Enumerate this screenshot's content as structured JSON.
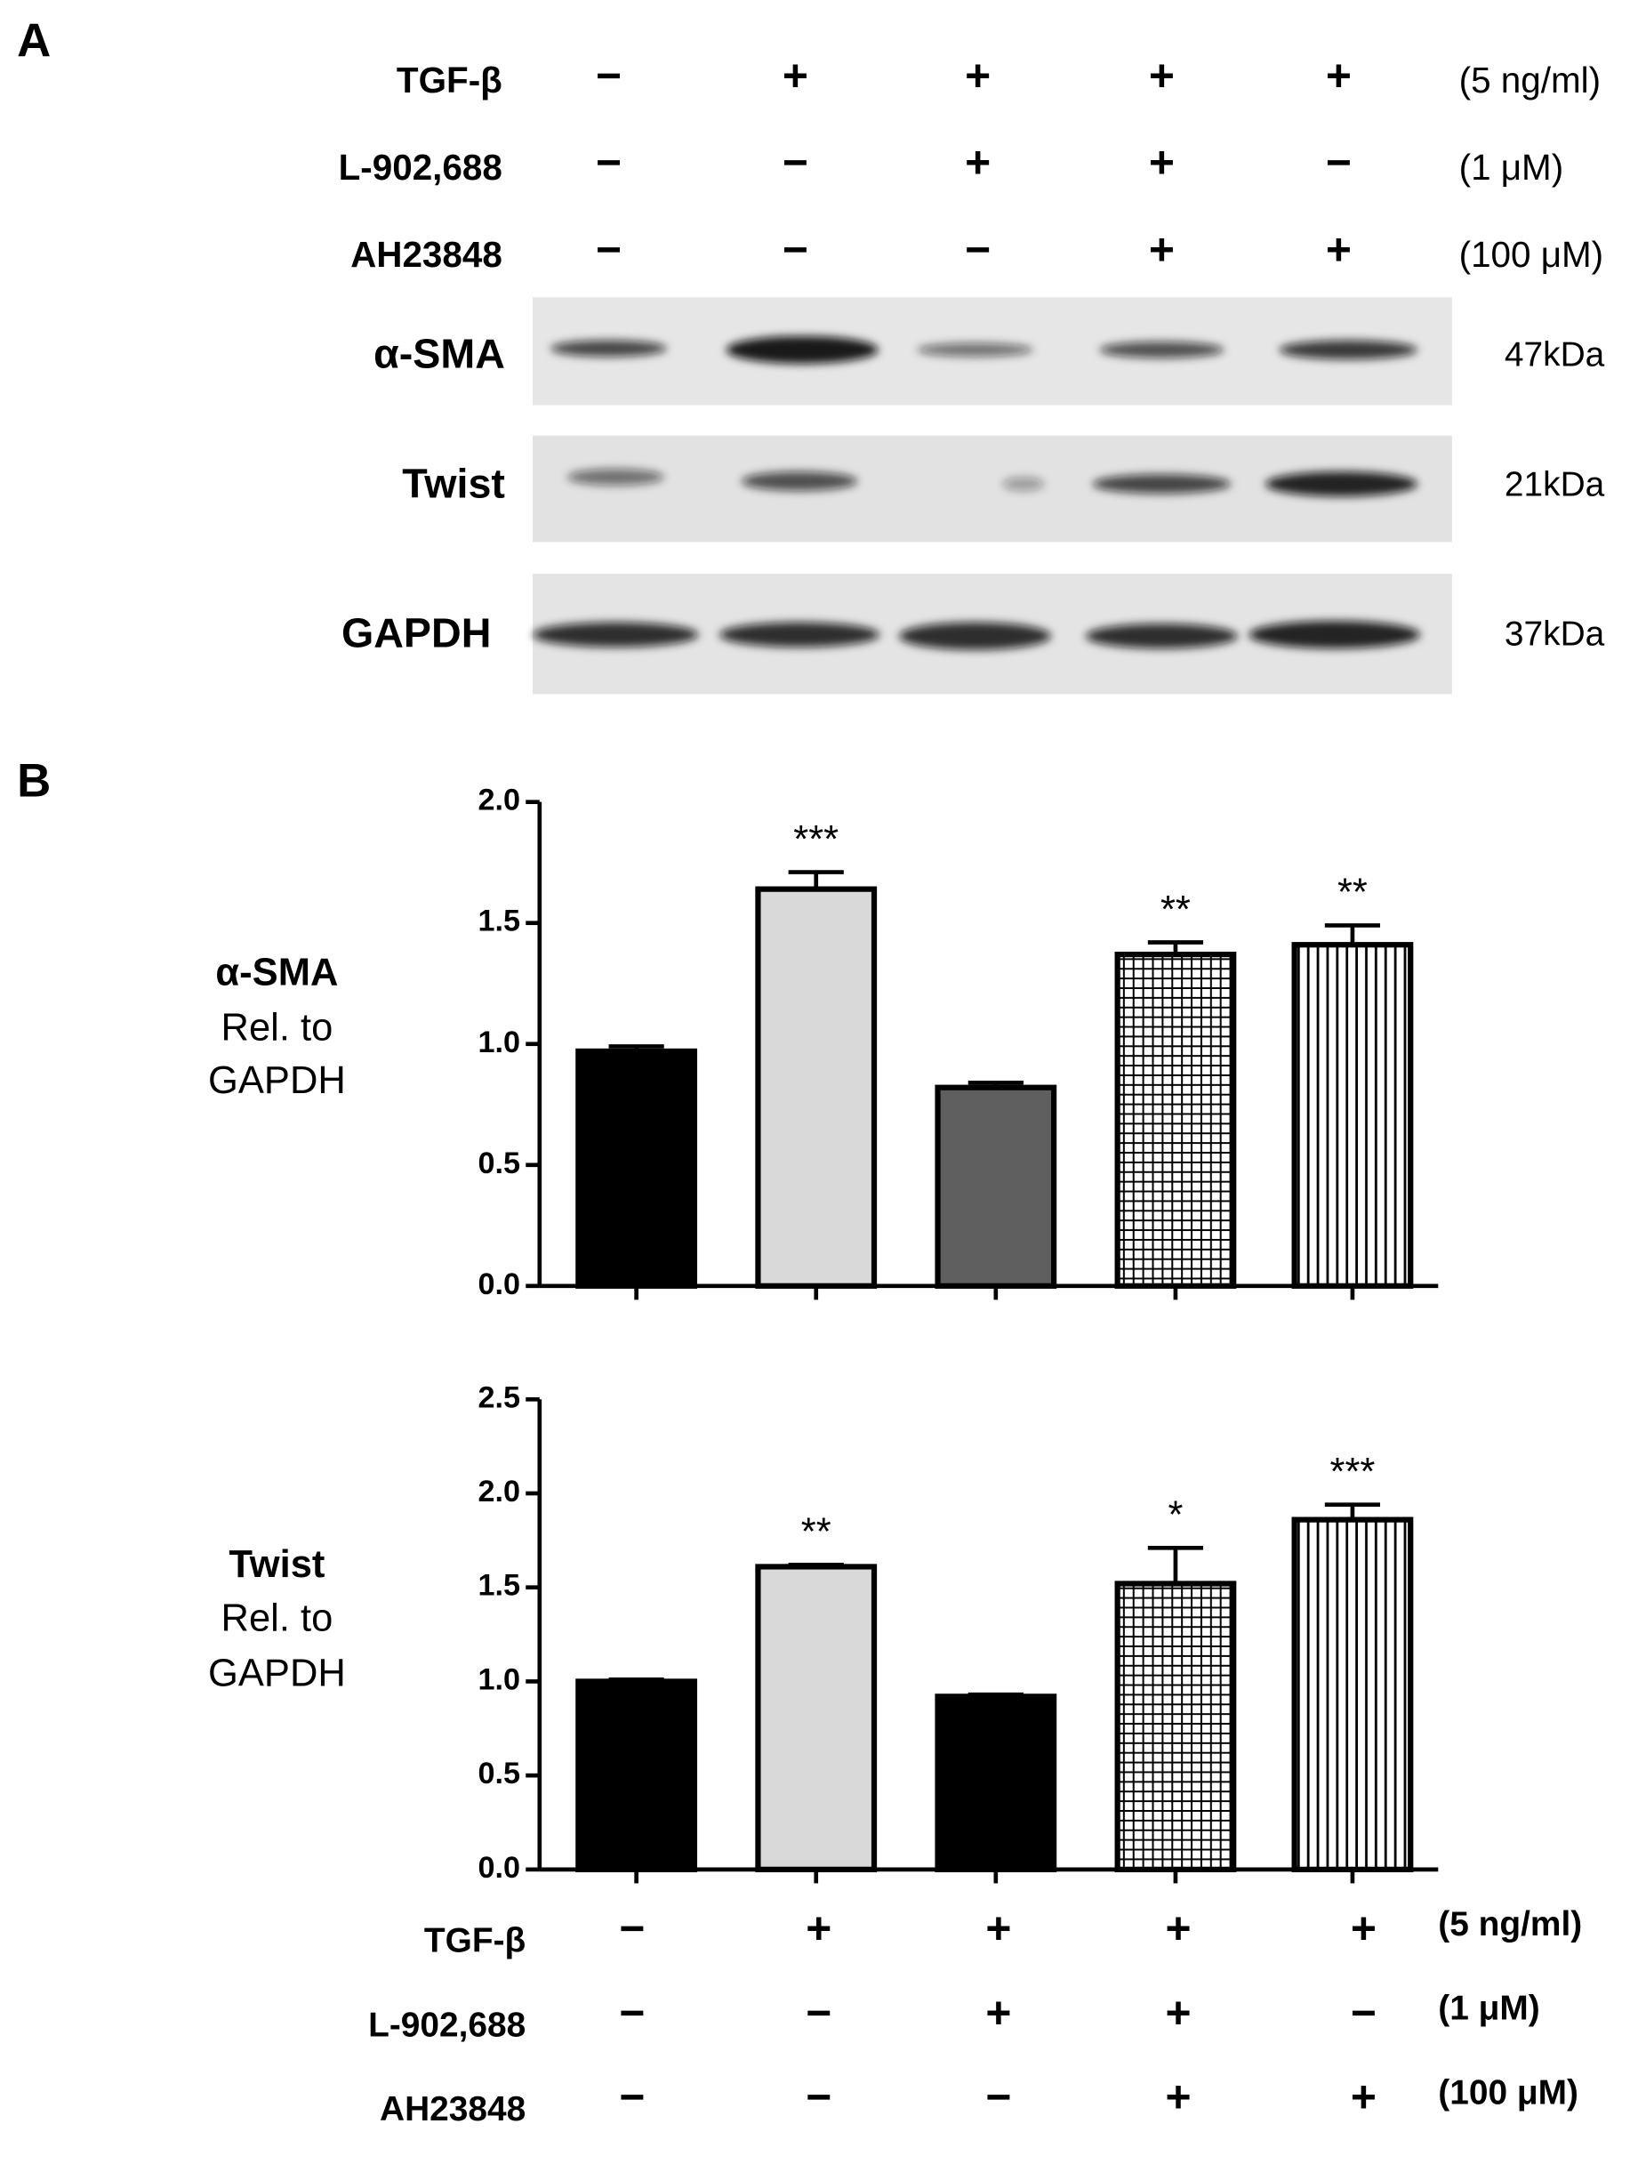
{
  "panel_a": {
    "label": "A",
    "conditions": [
      {
        "name": "TGF-β",
        "marks": [
          "−",
          "+",
          "+",
          "+",
          "+"
        ],
        "dose": "(5 ng/ml)"
      },
      {
        "name": "L-902,688",
        "marks": [
          "−",
          "−",
          "+",
          "+",
          "−"
        ],
        "dose": "(1 μM)"
      },
      {
        "name": "AH23848",
        "marks": [
          "−",
          "−",
          "−",
          "+",
          "+"
        ],
        "dose": "(100 μM)"
      }
    ],
    "blots": [
      {
        "name": "α-SMA",
        "size": "47kDa"
      },
      {
        "name": "Twist",
        "size": "21kDa"
      },
      {
        "name": "GAPDH",
        "size": "37kDa"
      }
    ]
  },
  "panel_b": {
    "label": "B",
    "conditions": [
      {
        "name": "TGF-β",
        "marks": [
          "−",
          "+",
          "+",
          "+",
          "+"
        ],
        "dose": "(5 ng/ml)"
      },
      {
        "name": "L-902,688",
        "marks": [
          "−",
          "−",
          "+",
          "+",
          "−"
        ],
        "dose": "(1 μM)"
      },
      {
        "name": "AH23848",
        "marks": [
          "−",
          "−",
          "−",
          "+",
          "+"
        ],
        "dose": "(100 μM)"
      }
    ]
  },
  "chart_data": [
    {
      "type": "bar",
      "ylabel": [
        "α-SMA",
        "Rel. to",
        "GAPDH"
      ],
      "categories": [
        null,
        null,
        null,
        null,
        null
      ],
      "values": [
        0.97,
        1.64,
        0.82,
        1.37,
        1.41
      ],
      "errors": [
        0.02,
        0.07,
        0.02,
        0.05,
        0.08
      ],
      "annotations": [
        null,
        "***",
        null,
        "**",
        "**"
      ],
      "colors": [
        "#000000",
        "#d9d9d9",
        "#5f5f5f",
        "#ffffff",
        "#ffffff"
      ],
      "patterns": [
        "solid",
        "solid",
        "solid",
        "grid",
        "vertical"
      ],
      "ylim": [
        0,
        2.0
      ],
      "yticks": [
        {
          "value": 0,
          "label": "0.0"
        },
        {
          "value": 0.5,
          "label": "0.5"
        },
        {
          "value": 1,
          "label": "1.0"
        },
        {
          "value": 1.5,
          "label": "1.5"
        },
        {
          "value": 2,
          "label": "2.0"
        }
      ]
    },
    {
      "type": "bar",
      "ylabel": [
        "Twist",
        "Rel. to",
        "GAPDH"
      ],
      "categories": [
        null,
        null,
        null,
        null,
        null
      ],
      "values": [
        1.0,
        1.61,
        0.92,
        1.52,
        1.86
      ],
      "errors": [
        0.01,
        0.01,
        0.01,
        0.19,
        0.08
      ],
      "annotations": [
        null,
        "**",
        null,
        "*",
        "***"
      ],
      "colors": [
        "#000000",
        "#d9d9d9",
        "#000000",
        "#ffffff",
        "#ffffff"
      ],
      "patterns": [
        "solid",
        "solid",
        "solid",
        "grid",
        "vertical"
      ],
      "ylim": [
        0,
        2.5
      ],
      "yticks": [
        {
          "value": 0,
          "label": "0.0"
        },
        {
          "value": 0.5,
          "label": "0.5"
        },
        {
          "value": 1,
          "label": "1.0"
        },
        {
          "value": 1.5,
          "label": "1.5"
        },
        {
          "value": 2,
          "label": "2.0"
        },
        {
          "value": 2.5,
          "label": "2.5"
        }
      ]
    }
  ]
}
